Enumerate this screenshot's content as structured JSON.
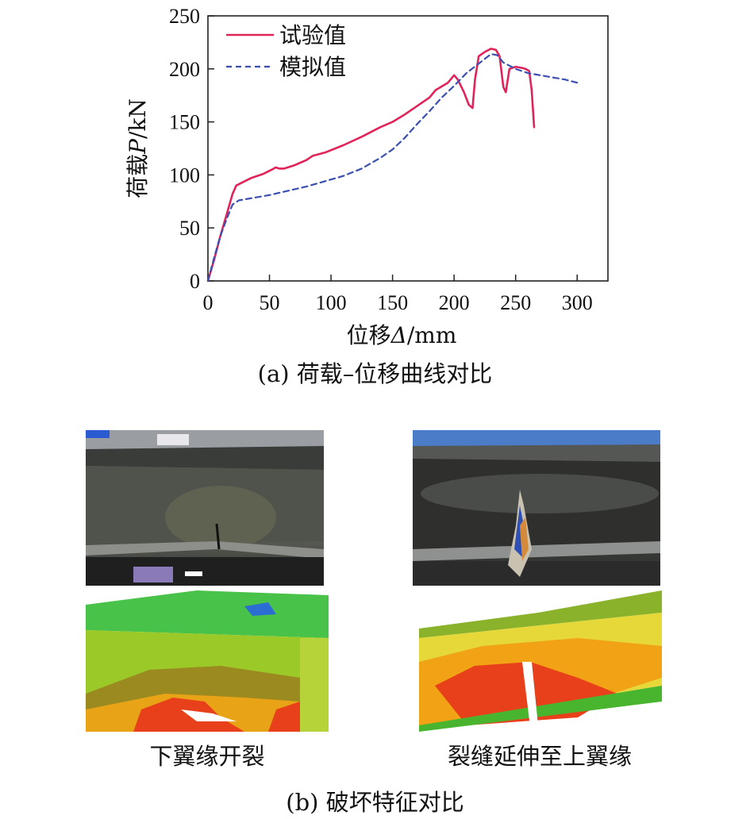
{
  "chart_data": {
    "type": "line",
    "xlabel_prefix": "位移",
    "xlabel_symbol": "Δ",
    "xlabel_unit": "/mm",
    "ylabel_prefix": "荷载",
    "ylabel_symbol": "P",
    "ylabel_unit": "/kN",
    "xlim": [
      0,
      325
    ],
    "ylim": [
      0,
      250
    ],
    "xticks": [
      0,
      50,
      100,
      150,
      200,
      250,
      300
    ],
    "yticks": [
      0,
      50,
      100,
      150,
      200,
      250
    ],
    "grid": false,
    "legend_position": "top-left",
    "series": [
      {
        "name": "试验值",
        "color": "#e0245a",
        "style": "solid",
        "points": [
          [
            0,
            0
          ],
          [
            5,
            20
          ],
          [
            10,
            42
          ],
          [
            15,
            62
          ],
          [
            20,
            82
          ],
          [
            23,
            90
          ],
          [
            28,
            93
          ],
          [
            35,
            97
          ],
          [
            45,
            101
          ],
          [
            52,
            105
          ],
          [
            55,
            107
          ],
          [
            58,
            106
          ],
          [
            62,
            106
          ],
          [
            70,
            109
          ],
          [
            80,
            114
          ],
          [
            85,
            118
          ],
          [
            95,
            121
          ],
          [
            110,
            128
          ],
          [
            125,
            136
          ],
          [
            140,
            145
          ],
          [
            150,
            150
          ],
          [
            160,
            157
          ],
          [
            170,
            165
          ],
          [
            180,
            173
          ],
          [
            185,
            180
          ],
          [
            195,
            187
          ],
          [
            200,
            194
          ],
          [
            203,
            190
          ],
          [
            208,
            178
          ],
          [
            212,
            166
          ],
          [
            215,
            163
          ],
          [
            217,
            190
          ],
          [
            220,
            212
          ],
          [
            225,
            216
          ],
          [
            230,
            219
          ],
          [
            234,
            218
          ],
          [
            237,
            212
          ],
          [
            240,
            183
          ],
          [
            242,
            178
          ],
          [
            245,
            200
          ],
          [
            250,
            202
          ],
          [
            255,
            201
          ],
          [
            258,
            200
          ],
          [
            261,
            198
          ],
          [
            263,
            180
          ],
          [
            265,
            145
          ]
        ]
      },
      {
        "name": "模拟值",
        "color": "#3b4fb0",
        "style": "dashed",
        "points": [
          [
            0,
            0
          ],
          [
            5,
            22
          ],
          [
            10,
            42
          ],
          [
            15,
            58
          ],
          [
            20,
            72
          ],
          [
            25,
            76
          ],
          [
            35,
            78
          ],
          [
            50,
            81
          ],
          [
            65,
            85
          ],
          [
            80,
            89
          ],
          [
            95,
            94
          ],
          [
            110,
            99
          ],
          [
            125,
            106
          ],
          [
            140,
            116
          ],
          [
            150,
            124
          ],
          [
            160,
            135
          ],
          [
            170,
            148
          ],
          [
            180,
            160
          ],
          [
            190,
            173
          ],
          [
            200,
            184
          ],
          [
            210,
            196
          ],
          [
            220,
            205
          ],
          [
            230,
            214
          ],
          [
            235,
            213
          ],
          [
            240,
            206
          ],
          [
            250,
            200
          ],
          [
            260,
            196
          ],
          [
            275,
            193
          ],
          [
            290,
            190
          ],
          [
            300,
            187
          ]
        ]
      }
    ]
  },
  "captions": {
    "chart": "(a) 荷载–位移曲线对比",
    "left_photo": "下翼缘开裂",
    "right_photo": "裂缝延伸至上翼缘",
    "bottom": "(b) 破坏特征对比"
  }
}
